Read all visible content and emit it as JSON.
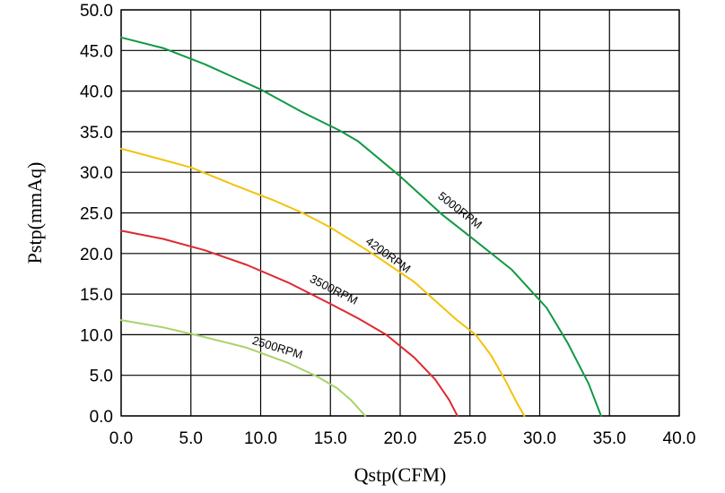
{
  "chart_data": {
    "type": "line",
    "title": "",
    "xlabel": "Qstp(CFM)",
    "ylabel": "Pstp(mmAq)",
    "xlim": [
      0,
      40
    ],
    "ylim": [
      0,
      50
    ],
    "grid": true,
    "x_ticks": [
      "0.0",
      "5.0",
      "10.0",
      "15.0",
      "20.0",
      "25.0",
      "30.0",
      "35.0",
      "40.0"
    ],
    "y_ticks": [
      "0.0",
      "5.0",
      "10.0",
      "15.0",
      "20.0",
      "25.0",
      "30.0",
      "35.0",
      "40.0",
      "45.0",
      "50.0"
    ],
    "series": [
      {
        "name": "5000RPM",
        "color": "#119944",
        "points": [
          [
            0,
            46.6
          ],
          [
            3,
            45.3
          ],
          [
            6,
            43.3
          ],
          [
            10,
            40.2
          ],
          [
            13,
            37.4
          ],
          [
            15.6,
            35.2
          ],
          [
            17,
            33.8
          ],
          [
            20,
            29.5
          ],
          [
            23,
            24.8
          ],
          [
            25,
            22.1
          ],
          [
            28,
            18.0
          ],
          [
            30.5,
            13.3
          ],
          [
            32,
            9.0
          ],
          [
            33.5,
            4.0
          ],
          [
            34.4,
            0.0
          ]
        ]
      },
      {
        "name": "4200RPM",
        "color": "#f4c20d",
        "points": [
          [
            0,
            32.9
          ],
          [
            2,
            32.0
          ],
          [
            5,
            30.6
          ],
          [
            8,
            28.5
          ],
          [
            11,
            26.5
          ],
          [
            13,
            25.0
          ],
          [
            15,
            23.2
          ],
          [
            18,
            20.0
          ],
          [
            21,
            16.5
          ],
          [
            24,
            11.9
          ],
          [
            25.4,
            10.0
          ],
          [
            26.5,
            7.5
          ],
          [
            27.5,
            4.5
          ],
          [
            28.4,
            1.5
          ],
          [
            28.9,
            0.0
          ]
        ]
      },
      {
        "name": "3500RPM",
        "color": "#dd2a30",
        "points": [
          [
            0,
            22.8
          ],
          [
            3,
            21.8
          ],
          [
            6,
            20.4
          ],
          [
            9,
            18.6
          ],
          [
            12,
            16.4
          ],
          [
            15,
            13.8
          ],
          [
            17,
            12.0
          ],
          [
            19,
            10.0
          ],
          [
            21,
            7.2
          ],
          [
            22.5,
            4.5
          ],
          [
            23.5,
            2.0
          ],
          [
            24.1,
            0.0
          ]
        ]
      },
      {
        "name": "2500RPM",
        "color": "#a8d26a",
        "points": [
          [
            0,
            11.8
          ],
          [
            3,
            10.9
          ],
          [
            6,
            9.7
          ],
          [
            9,
            8.4
          ],
          [
            12,
            6.5
          ],
          [
            14,
            4.9
          ],
          [
            15.5,
            3.4
          ],
          [
            16.5,
            1.9
          ],
          [
            17.5,
            0.0
          ]
        ]
      }
    ],
    "annotations": [
      {
        "text": "5000RPM",
        "series": "5000RPM"
      },
      {
        "text": "4200RPM",
        "series": "4200RPM"
      },
      {
        "text": "3500RPM",
        "series": "3500RPM"
      },
      {
        "text": "2500RPM",
        "series": "2500RPM"
      }
    ]
  }
}
